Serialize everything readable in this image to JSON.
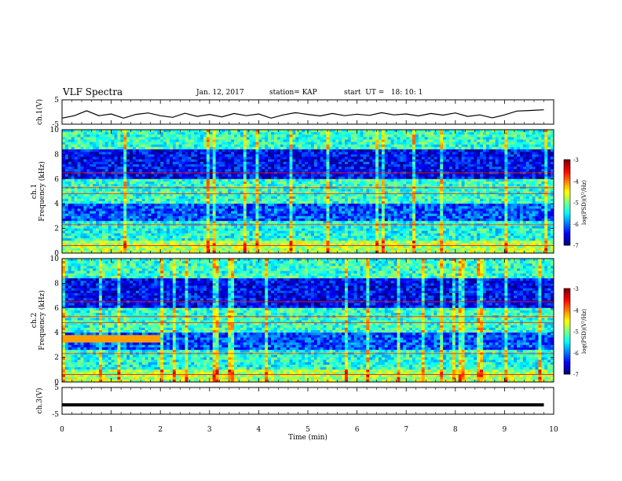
{
  "header": {
    "title": "VLF Spectra",
    "date": "Jan. 12, 2017",
    "station": "station= KAP",
    "start": "start  UT =   18: 10: 1"
  },
  "chart_data": [
    {
      "type": "line",
      "panel": "ch1-waveform",
      "ylabel": "ch.1(V)",
      "ylim": [
        -5,
        5
      ],
      "yticks": [
        "5",
        "-5"
      ],
      "x": [
        0,
        0.25,
        0.5,
        0.75,
        1.0,
        1.25,
        1.5,
        1.75,
        2.0,
        2.25,
        2.5,
        2.75,
        3.0,
        3.25,
        3.5,
        3.75,
        4.0,
        4.25,
        4.5,
        4.75,
        5.0,
        5.25,
        5.5,
        5.75,
        6.0,
        6.25,
        6.5,
        6.75,
        7.0,
        7.25,
        7.5,
        7.75,
        8.0,
        8.25,
        8.5,
        8.75,
        9.0,
        9.25,
        9.5,
        9.8
      ],
      "y": [
        -2.5,
        -1.5,
        0.5,
        -1.5,
        -0.8,
        -2.5,
        -1,
        -0.4,
        -1.5,
        -2.2,
        -0.5,
        -1.8,
        -1,
        -2,
        -0.6,
        -1.5,
        -0.8,
        -2.5,
        -1.2,
        -0.3,
        -1,
        -1.6,
        -0.6,
        -1.5,
        -0.9,
        -1.4,
        -0.3,
        -1.2,
        -0.8,
        -1.6,
        -0.6,
        -1.3,
        -0.4,
        -1.8,
        -1.2,
        -2.4,
        -1.2,
        0.4,
        0.6,
        0.9
      ]
    },
    {
      "type": "heatmap",
      "panel": "ch1-spectrogram",
      "ylabel": "ch.1 Frequency (kHz)",
      "ylim": [
        0,
        10
      ],
      "yticks": [
        "0",
        "2",
        "4",
        "6",
        "8",
        "10"
      ],
      "colorbar": {
        "label": "log(PSD)(V²/Hz)",
        "range": [
          -7,
          -3
        ],
        "ticks": [
          "-3",
          "-4",
          "-5",
          "-6",
          "-7"
        ]
      }
    },
    {
      "type": "heatmap",
      "panel": "ch2-spectrogram",
      "ylabel": "ch.2 Frequency (kHz)",
      "ylim": [
        0,
        10
      ],
      "yticks": [
        "0",
        "2",
        "4",
        "6",
        "8",
        "10"
      ],
      "colorbar": {
        "label": "log(PSD)(V²/Hz)",
        "range": [
          -7,
          -3
        ],
        "ticks": [
          "-3",
          "-4",
          "-5",
          "-6",
          "-7"
        ]
      }
    },
    {
      "type": "line",
      "panel": "ch3-waveform",
      "ylabel": "ch.3(V)",
      "ylim": [
        -5,
        5
      ],
      "yticks": [
        "5",
        "-5"
      ],
      "x": [
        0,
        9.8
      ],
      "y": [
        -1.5,
        -1.5
      ]
    }
  ],
  "x_axis": {
    "label": "Time  (min)",
    "range": [
      0,
      10
    ],
    "ticks": [
      "0",
      "1",
      "2",
      "3",
      "4",
      "5",
      "6",
      "7",
      "8",
      "9",
      "10"
    ]
  }
}
